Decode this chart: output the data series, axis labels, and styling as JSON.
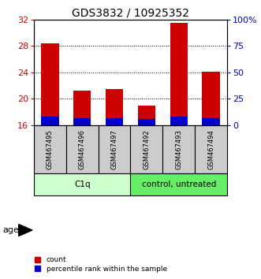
{
  "title": "GDS3832 / 10925352",
  "samples": [
    "GSM467495",
    "GSM467496",
    "GSM467497",
    "GSM467492",
    "GSM467493",
    "GSM467494"
  ],
  "red_values": [
    28.4,
    21.2,
    21.5,
    19.0,
    31.5,
    24.1
  ],
  "blue_values": [
    17.3,
    17.0,
    17.0,
    16.9,
    17.3,
    17.0
  ],
  "ymin": 16,
  "ymax": 32,
  "yticks_left": [
    16,
    20,
    24,
    28,
    32
  ],
  "yticks_right": [
    0,
    25,
    50,
    75,
    100
  ],
  "yticklabels_right": [
    "0",
    "25",
    "50",
    "75",
    "100%"
  ],
  "groups": [
    {
      "label": "C1q",
      "start": 0,
      "end": 2,
      "color": "#ccffcc"
    },
    {
      "label": "control, untreated",
      "start": 3,
      "end": 5,
      "color": "#66ee66"
    }
  ],
  "bar_color_red": "#cc0000",
  "bar_color_blue": "#0000cc",
  "bar_width": 0.55,
  "legend_red": "count",
  "legend_blue": "percentile rank within the sample",
  "agent_label": "agent",
  "bg_plot": "white",
  "bg_sample_labels": "#cccccc",
  "title_fontsize": 10,
  "tick_fontsize": 8,
  "left_tick_color": "#cc0000",
  "right_tick_color": "#0000cc"
}
